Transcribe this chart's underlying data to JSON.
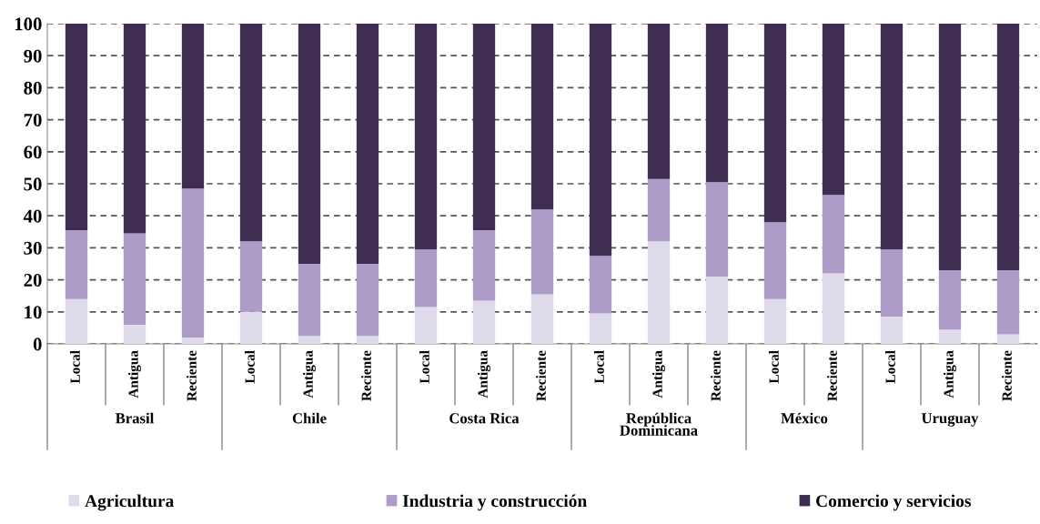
{
  "chart_data": {
    "type": "bar",
    "stacked": true,
    "categories": [
      "Local",
      "Antigua",
      "Reciente",
      "Local",
      "Antigua",
      "Reciente",
      "Local",
      "Antigua",
      "Reciente",
      "Local",
      "Antigua",
      "Reciente",
      "Local",
      "Reciente",
      "Local",
      "Antigua",
      "Reciente"
    ],
    "series": [
      {
        "name": "Agricultura",
        "color": "#e0dbea",
        "values": [
          14,
          6,
          2,
          10,
          2.5,
          2.5,
          11.5,
          13.5,
          15.5,
          9.5,
          32,
          21,
          14,
          22,
          8.5,
          4.5,
          3
        ]
      },
      {
        "name": "Industria y construcción",
        "color": "#ad9cc8",
        "values": [
          21.5,
          28.5,
          46.5,
          22,
          22.5,
          22.5,
          18,
          22,
          26.5,
          18,
          19.5,
          29.5,
          24,
          24.5,
          21,
          18.5,
          20
        ]
      },
      {
        "name": "Comercio y servicios",
        "color": "#3f2d52",
        "values": [
          64.5,
          65.5,
          51.5,
          68,
          75,
          75,
          70.5,
          64.5,
          58,
          72.5,
          48.5,
          49.5,
          62,
          53.5,
          70.5,
          77,
          77
        ]
      }
    ],
    "annotations": [
      "Brasil",
      "Chile",
      "Costa Rica",
      "República\nDominicana",
      "México",
      "Uruguay"
    ],
    "ylim": [
      0,
      100
    ],
    "yticks": [
      0,
      10,
      20,
      30,
      40,
      50,
      60,
      70,
      80,
      90,
      100
    ],
    "grid": "y",
    "legend": "bottom"
  }
}
